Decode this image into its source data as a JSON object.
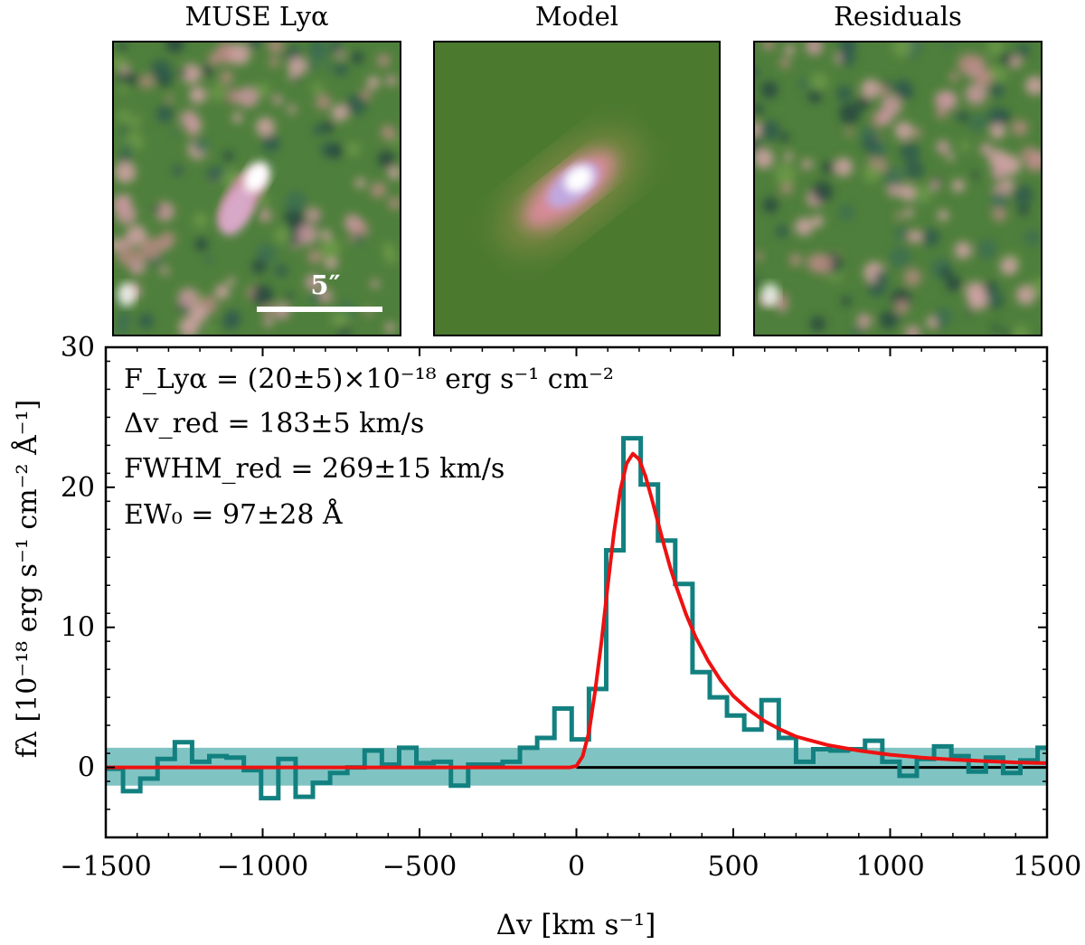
{
  "panels": [
    {
      "title": "MUSE Lyα",
      "scale_bar_label": "5″"
    },
    {
      "title": "Model"
    },
    {
      "title": "Residuals"
    }
  ],
  "chart_data": {
    "type": "line",
    "xlabel": "Δv [km s⁻¹]",
    "ylabel": "fλ [10⁻¹⁸ erg s⁻¹ cm⁻² Å⁻¹]",
    "xlim": [
      -1500,
      1500
    ],
    "ylim": [
      -5,
      30
    ],
    "x_ticks": [
      -1500,
      -1000,
      -500,
      0,
      500,
      1000,
      1500
    ],
    "x_tick_labels": [
      "−1500",
      "−1000",
      "−500",
      "0",
      "500",
      "1000",
      "1500"
    ],
    "y_ticks": [
      0,
      10,
      20,
      30
    ],
    "y_tick_labels": [
      "0",
      "10",
      "20",
      "30"
    ],
    "annotations": [
      "F_Lyα = (20±5)×10⁻¹⁸ erg s⁻¹ cm⁻²",
      "Δv_red = 183±5 km/s",
      "FWHM_red = 269±15 km/s",
      "EW₀ = 97±28 Å"
    ],
    "colors": {
      "observed": "#138080",
      "error_band": "#7fc4c2",
      "model": "#ee1111",
      "zero_line": "#000000"
    },
    "error_band": {
      "lower": -1.3,
      "upper": 1.4
    },
    "series": [
      {
        "style": "step",
        "x": [
          -1500,
          -1445,
          -1390,
          -1335,
          -1280,
          -1225,
          -1170,
          -1115,
          -1060,
          -1005,
          -950,
          -895,
          -840,
          -785,
          -730,
          -675,
          -620,
          -565,
          -510,
          -455,
          -400,
          -345,
          -290,
          -235,
          -180,
          -125,
          -70,
          -15,
          40,
          95,
          150,
          205,
          260,
          315,
          370,
          425,
          480,
          535,
          590,
          645,
          700,
          755,
          810,
          865,
          920,
          975,
          1030,
          1085,
          1140,
          1195,
          1250,
          1305,
          1360,
          1415,
          1470
        ],
        "y": [
          -0.1,
          -1.7,
          -0.8,
          0.6,
          1.8,
          0.4,
          0.8,
          0.7,
          -0.2,
          -2.2,
          0.6,
          -2.1,
          -1.1,
          -0.4,
          0.0,
          1.2,
          0.2,
          1.4,
          0.3,
          0.4,
          -1.3,
          0.2,
          0.2,
          0.4,
          1.4,
          2.1,
          4.2,
          2.0,
          5.6,
          15.5,
          23.5,
          20.2,
          16.2,
          13.1,
          6.8,
          5.0,
          3.7,
          2.7,
          4.8,
          2.1,
          0.4,
          1.3,
          1.2,
          1.3,
          1.9,
          0.4,
          -0.6,
          0.6,
          1.5,
          0.8,
          -0.3,
          0.7,
          -0.4,
          0.5,
          1.4
        ]
      },
      {
        "style": "model",
        "x": [
          -1500,
          -1300,
          -1100,
          -900,
          -700,
          -500,
          -300,
          -100,
          -20,
          0,
          20,
          40,
          60,
          80,
          100,
          120,
          140,
          160,
          180,
          200,
          220,
          240,
          260,
          280,
          300,
          320,
          350,
          380,
          420,
          460,
          500,
          550,
          600,
          650,
          700,
          800,
          900,
          1000,
          1100,
          1200,
          1300,
          1400,
          1500
        ],
        "y": [
          0,
          0,
          0,
          0,
          0,
          0,
          0,
          0,
          0,
          0.1,
          0.8,
          2.5,
          5.5,
          9.0,
          13.0,
          16.8,
          19.8,
          21.7,
          22.4,
          22.0,
          20.8,
          19.2,
          17.5,
          15.8,
          14.2,
          12.8,
          10.9,
          9.3,
          7.6,
          6.2,
          5.1,
          4.1,
          3.3,
          2.7,
          2.2,
          1.6,
          1.2,
          0.9,
          0.7,
          0.55,
          0.45,
          0.35,
          0.3
        ]
      }
    ]
  }
}
